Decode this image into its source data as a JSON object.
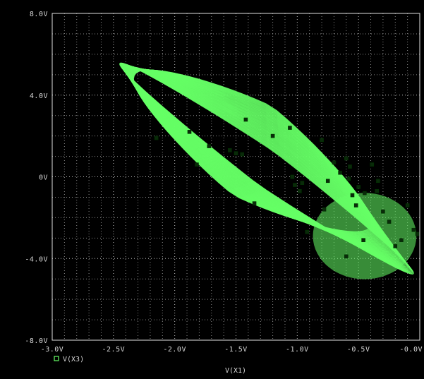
{
  "chart_data": {
    "type": "scatter",
    "title": "",
    "xlabel": "V(X1)",
    "ylabel": "",
    "xlim": [
      -3.0,
      0.0
    ],
    "ylim": [
      -8.0,
      8.0
    ],
    "x_ticks": [
      {
        "value": -3.0,
        "label": "-3.0V"
      },
      {
        "value": -2.5,
        "label": "-2.5V"
      },
      {
        "value": -2.0,
        "label": "-2.0V"
      },
      {
        "value": -1.5,
        "label": "-1.5V"
      },
      {
        "value": -1.0,
        "label": "-1.0V"
      },
      {
        "value": -0.5,
        "label": "-0.5V"
      },
      {
        "value": 0.0,
        "label": "-0.0V"
      }
    ],
    "y_ticks": [
      {
        "value": 8.0,
        "label": "8.0V"
      },
      {
        "value": 4.0,
        "label": "4.0V"
      },
      {
        "value": 0.0,
        "label": "0V"
      },
      {
        "value": -4.0,
        "label": "-4.0V"
      },
      {
        "value": -8.0,
        "label": "-8.0V"
      }
    ],
    "grid": true,
    "legend_position": "bottom-left",
    "background_color": "#000000",
    "series": [
      {
        "name": "V(X3)",
        "color": "#66ff66",
        "marker": "square",
        "points": [
          [
            -2.15,
            1.9
          ],
          [
            -1.88,
            2.2
          ],
          [
            -1.82,
            0.6
          ],
          [
            -1.72,
            1.5
          ],
          [
            -1.55,
            1.3
          ],
          [
            -1.5,
            1.15
          ],
          [
            -1.45,
            1.1
          ],
          [
            -1.42,
            2.8
          ],
          [
            -1.35,
            -1.3
          ],
          [
            -1.2,
            2.0
          ],
          [
            -1.06,
            2.4
          ],
          [
            -1.04,
            0.0
          ],
          [
            -1.02,
            -0.4
          ],
          [
            -0.98,
            -0.7
          ],
          [
            -0.96,
            -0.3
          ],
          [
            -0.92,
            -2.7
          ],
          [
            -0.8,
            1.8
          ],
          [
            -0.78,
            -1.6
          ],
          [
            -0.75,
            -0.2
          ],
          [
            -0.6,
            0.9
          ],
          [
            -0.58,
            -0.1
          ],
          [
            -0.57,
            0.5
          ],
          [
            -0.55,
            -0.9
          ],
          [
            -0.52,
            -1.4
          ],
          [
            -0.5,
            -0.5
          ],
          [
            -0.46,
            -3.1
          ],
          [
            -0.39,
            0.6
          ],
          [
            -0.34,
            -0.2
          ],
          [
            -0.15,
            -3.1
          ],
          [
            -0.1,
            -1.4
          ],
          [
            -0.05,
            -2.6
          ],
          [
            -0.02,
            -2.8
          ],
          [
            -0.35,
            -0.7
          ],
          [
            -0.6,
            -3.9
          ],
          [
            -0.7,
            0.7
          ],
          [
            -0.65,
            0.2
          ],
          [
            -0.45,
            -0.8
          ],
          [
            -0.3,
            -1.7
          ],
          [
            -0.25,
            -2.2
          ],
          [
            -0.2,
            -3.4
          ]
        ]
      }
    ]
  }
}
